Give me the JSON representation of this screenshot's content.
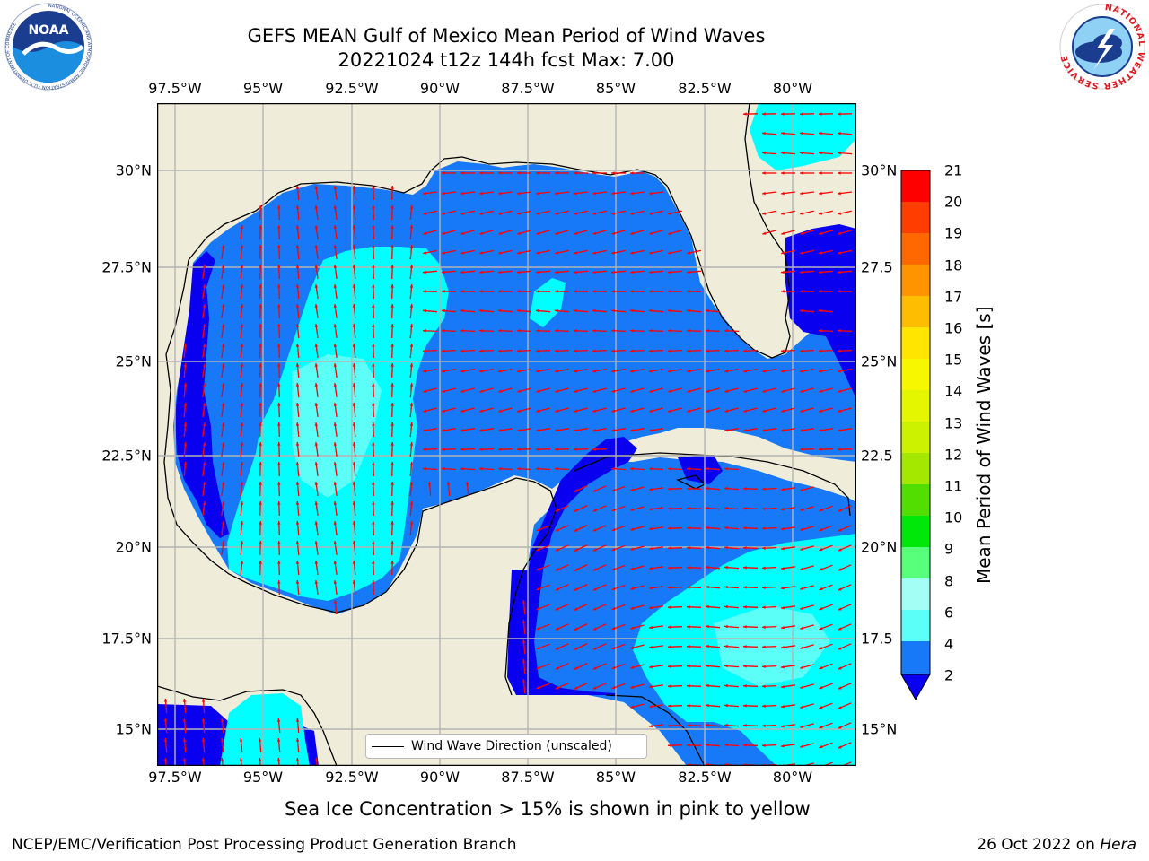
{
  "header": {
    "title_line1": "GEFS MEAN Gulf of Mexico Mean Period of Wind Waves",
    "title_line2": "20221024 t12z 144h fcst   Max: 7.00"
  },
  "logos": {
    "noaa_text": "NOAA",
    "noaa_ring": "NATIONAL OCEANIC AND ATMOSPHERIC ADMINISTRATION · U.S. DEPARTMENT OF COMMERCE",
    "nws_ring": "NATIONAL WEATHER SERVICE"
  },
  "map": {
    "lon_labels": [
      "97.5°W",
      "95°W",
      "92.5°W",
      "90°W",
      "87.5°W",
      "85°W",
      "82.5°W",
      "80°W"
    ],
    "lat_labels_left": [
      "30°N",
      "27.5°N",
      "25°N",
      "22.5°N",
      "20°N",
      "17.5°N",
      "15°N"
    ],
    "lat_labels_right": [
      "30°N",
      "27.5",
      "25°N",
      "22.5",
      "20°N",
      "17.5",
      "15°N"
    ],
    "legend_text": "Wind Wave Direction (unscaled)",
    "colors": {
      "land": "#efedd9",
      "ocean_2_4": "#1779f7",
      "ocean_0_2": "#0a00f0",
      "ocean_4_6": "#00ffff",
      "ocean_6_8": "#5cfff7",
      "arrows": "#ff0000",
      "grid": "#b4b4b4"
    }
  },
  "colorbar": {
    "label": "Mean Period of Wind Waves [s]",
    "ticks": [
      "2",
      "4",
      "6",
      "8",
      "9",
      "10",
      "11",
      "12",
      "13",
      "14",
      "15",
      "16",
      "17",
      "18",
      "19",
      "20",
      "21"
    ],
    "colors": [
      "#1779f7",
      "#00ffff",
      "#5cfff7",
      "#a3fff6",
      "#57ff7a",
      "#00e80a",
      "#51de00",
      "#a4e800",
      "#cdf200",
      "#e5f700",
      "#f7f700",
      "#ffe500",
      "#ffbd00",
      "#ff9300",
      "#ff6800",
      "#ff3d00",
      "#ff0000"
    ],
    "extend_color": "#0a00f0"
  },
  "footer": {
    "sea_ice_note": "Sea Ice Concentration > 15% is shown in pink to yellow",
    "left": "NCEP/EMC/Verification Post Processing Product Generation Branch",
    "right_prefix": "26 Oct 2022 on ",
    "right_host": "Hera"
  }
}
